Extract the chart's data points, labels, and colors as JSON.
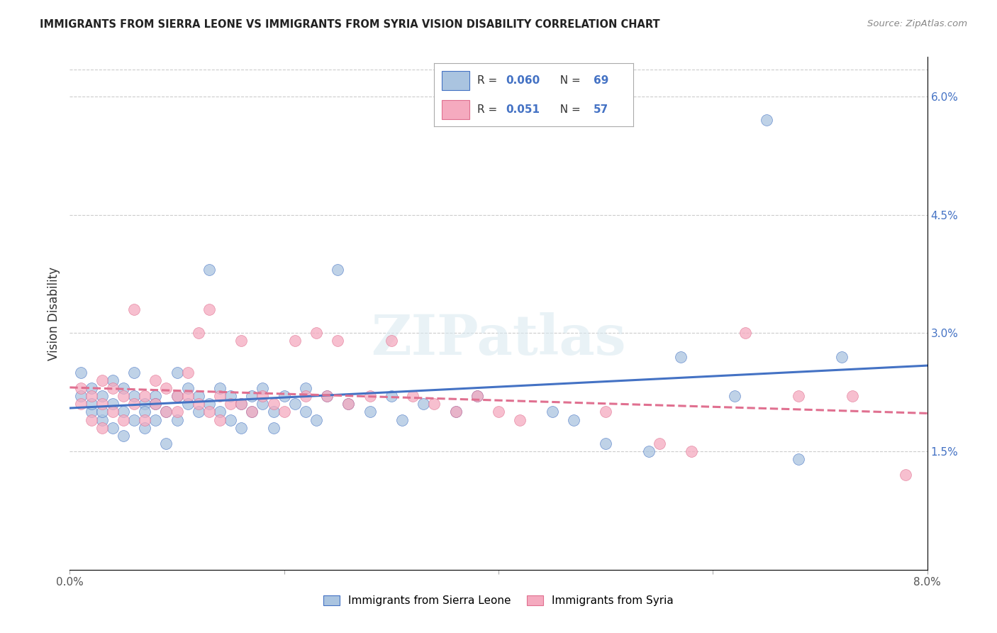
{
  "title": "IMMIGRANTS FROM SIERRA LEONE VS IMMIGRANTS FROM SYRIA VISION DISABILITY CORRELATION CHART",
  "source": "Source: ZipAtlas.com",
  "ylabel_left": "Vision Disability",
  "legend_label1": "Immigrants from Sierra Leone",
  "legend_label2": "Immigrants from Syria",
  "r1": 0.06,
  "n1": 69,
  "r2": 0.051,
  "n2": 57,
  "color1": "#aac4e0",
  "color2": "#f5aabf",
  "line_color1": "#4472c4",
  "line_color2": "#e07090",
  "xmin": 0.0,
  "xmax": 0.08,
  "ymin": 0.0,
  "ymax": 0.065,
  "right_yticks": [
    0.015,
    0.03,
    0.045,
    0.06
  ],
  "right_ytick_labels": [
    "1.5%",
    "3.0%",
    "4.5%",
    "6.0%"
  ],
  "watermark": "ZIPatlas",
  "sl_x": [
    0.001,
    0.001,
    0.002,
    0.002,
    0.002,
    0.003,
    0.003,
    0.003,
    0.004,
    0.004,
    0.004,
    0.005,
    0.005,
    0.005,
    0.006,
    0.006,
    0.006,
    0.007,
    0.007,
    0.007,
    0.008,
    0.008,
    0.008,
    0.009,
    0.009,
    0.01,
    0.01,
    0.01,
    0.011,
    0.011,
    0.012,
    0.012,
    0.013,
    0.013,
    0.014,
    0.014,
    0.015,
    0.015,
    0.016,
    0.016,
    0.017,
    0.017,
    0.018,
    0.018,
    0.019,
    0.019,
    0.02,
    0.021,
    0.022,
    0.022,
    0.023,
    0.024,
    0.025,
    0.026,
    0.028,
    0.03,
    0.031,
    0.033,
    0.036,
    0.038,
    0.045,
    0.047,
    0.05,
    0.054,
    0.057,
    0.062,
    0.065,
    0.068,
    0.072
  ],
  "sl_y": [
    0.025,
    0.022,
    0.02,
    0.023,
    0.021,
    0.019,
    0.022,
    0.02,
    0.024,
    0.021,
    0.018,
    0.023,
    0.02,
    0.017,
    0.022,
    0.019,
    0.025,
    0.021,
    0.02,
    0.018,
    0.022,
    0.019,
    0.021,
    0.02,
    0.016,
    0.025,
    0.022,
    0.019,
    0.023,
    0.021,
    0.02,
    0.022,
    0.038,
    0.021,
    0.023,
    0.02,
    0.019,
    0.022,
    0.021,
    0.018,
    0.022,
    0.02,
    0.023,
    0.021,
    0.02,
    0.018,
    0.022,
    0.021,
    0.023,
    0.02,
    0.019,
    0.022,
    0.038,
    0.021,
    0.02,
    0.022,
    0.019,
    0.021,
    0.02,
    0.022,
    0.02,
    0.019,
    0.016,
    0.015,
    0.027,
    0.022,
    0.057,
    0.014,
    0.027
  ],
  "sy_x": [
    0.001,
    0.001,
    0.002,
    0.002,
    0.003,
    0.003,
    0.003,
    0.004,
    0.004,
    0.005,
    0.005,
    0.006,
    0.006,
    0.007,
    0.007,
    0.008,
    0.008,
    0.009,
    0.009,
    0.01,
    0.01,
    0.011,
    0.011,
    0.012,
    0.012,
    0.013,
    0.013,
    0.014,
    0.014,
    0.015,
    0.016,
    0.016,
    0.017,
    0.018,
    0.019,
    0.02,
    0.021,
    0.022,
    0.023,
    0.024,
    0.025,
    0.026,
    0.028,
    0.03,
    0.032,
    0.034,
    0.036,
    0.038,
    0.04,
    0.042,
    0.05,
    0.055,
    0.058,
    0.063,
    0.068,
    0.073,
    0.078
  ],
  "sy_y": [
    0.023,
    0.021,
    0.022,
    0.019,
    0.024,
    0.021,
    0.018,
    0.023,
    0.02,
    0.022,
    0.019,
    0.033,
    0.021,
    0.022,
    0.019,
    0.024,
    0.021,
    0.02,
    0.023,
    0.022,
    0.02,
    0.025,
    0.022,
    0.03,
    0.021,
    0.033,
    0.02,
    0.022,
    0.019,
    0.021,
    0.029,
    0.021,
    0.02,
    0.022,
    0.021,
    0.02,
    0.029,
    0.022,
    0.03,
    0.022,
    0.029,
    0.021,
    0.022,
    0.029,
    0.022,
    0.021,
    0.02,
    0.022,
    0.02,
    0.019,
    0.02,
    0.016,
    0.015,
    0.03,
    0.022,
    0.022,
    0.012
  ]
}
